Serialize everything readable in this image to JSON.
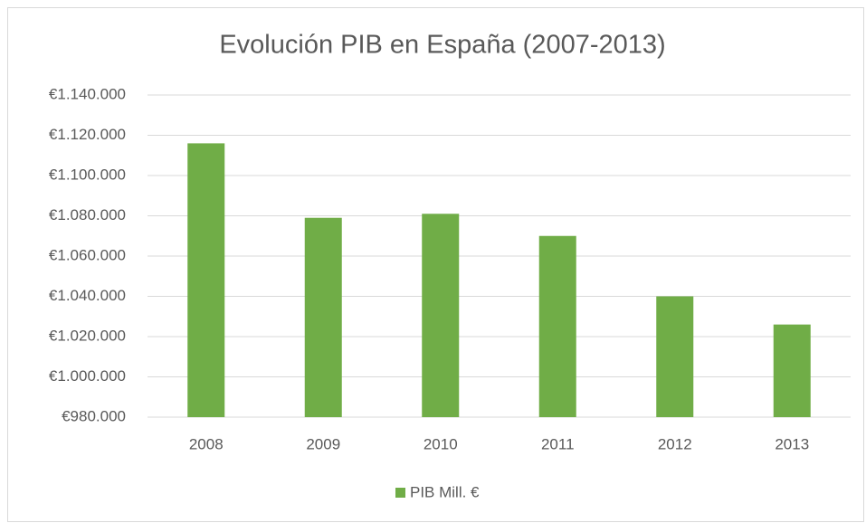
{
  "chart_data": {
    "type": "bar",
    "title": "Evolución PIB en España (2007-2013)",
    "categories": [
      "2008",
      "2009",
      "2010",
      "2011",
      "2012",
      "2013"
    ],
    "series": [
      {
        "name": "PIB Mill. €",
        "color": "#70ad47",
        "values": [
          1116000,
          1079000,
          1081000,
          1070000,
          1040000,
          1026000
        ]
      }
    ],
    "ylim": [
      980000,
      1140000
    ],
    "yticks": [
      {
        "value": 980000,
        "label": "€980.000"
      },
      {
        "value": 1000000,
        "label": "€1.000.000"
      },
      {
        "value": 1020000,
        "label": "€1.020.000"
      },
      {
        "value": 1040000,
        "label": "€1.040.000"
      },
      {
        "value": 1060000,
        "label": "€1.060.000"
      },
      {
        "value": 1080000,
        "label": "€1.080.000"
      },
      {
        "value": 1100000,
        "label": "€1.100.000"
      },
      {
        "value": 1120000,
        "label": "€1.120.000"
      },
      {
        "value": 1140000,
        "label": "€1.140.000"
      }
    ],
    "grid": true,
    "legend": "bottom"
  }
}
